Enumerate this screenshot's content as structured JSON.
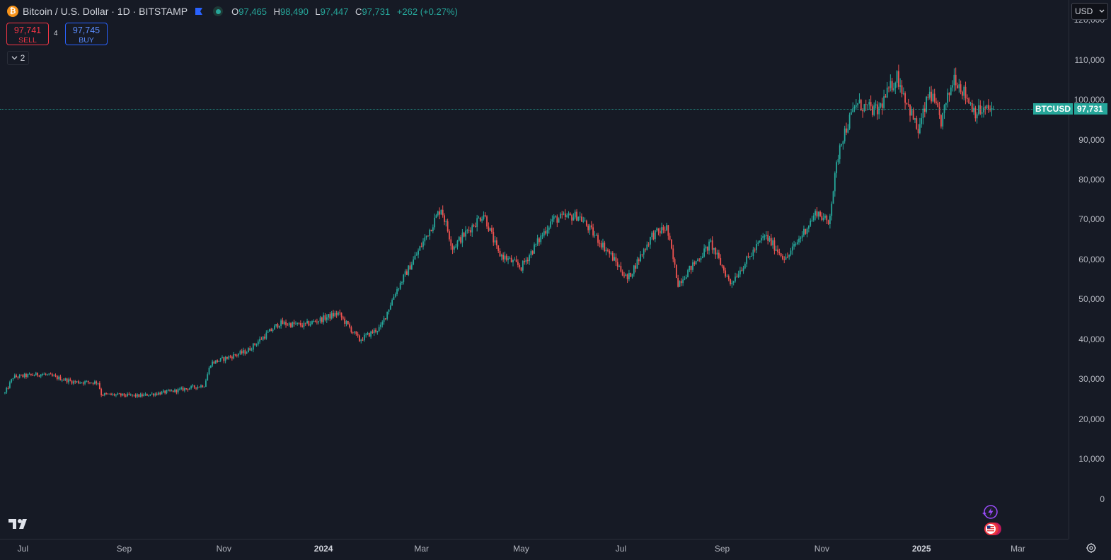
{
  "header": {
    "coin_glyph": "₿",
    "symbol": "Bitcoin / U.S. Dollar · 1D · BITSTAMP",
    "ohlc": {
      "o_label": "O",
      "o": "97,465",
      "h_label": "H",
      "h": "98,490",
      "l_label": "L",
      "l": "97,447",
      "c_label": "C",
      "c": "97,731",
      "change": "+262 (+0.27%)"
    }
  },
  "trade": {
    "sell_price": "97,741",
    "sell_label": "SELL",
    "spread": "4",
    "buy_price": "97,745",
    "buy_label": "BUY"
  },
  "indicators": {
    "count": "2"
  },
  "currency": {
    "value": "USD"
  },
  "last_price": {
    "symbol": "BTCUSD",
    "value": "97,731"
  },
  "colors": {
    "up": "#26a69a",
    "down": "#ef5350",
    "background": "#161a25",
    "grid": "#2a2e39"
  },
  "icons": [
    "bitcoin-icon",
    "flag-icon",
    "status-dot-icon",
    "chevron-down-icon",
    "tradingview-logo",
    "lightning-icon",
    "us-flag-icon",
    "settings-icon"
  ],
  "chart_data": {
    "type": "candlestick",
    "title": "Bitcoin / U.S. Dollar · 1D · BITSTAMP",
    "interval": "1D",
    "y_ticks": [
      "120,000",
      "110,000",
      "100,000",
      "90,000",
      "80,000",
      "70,000",
      "60,000",
      "50,000",
      "40,000",
      "30,000",
      "20,000",
      "10,000",
      "0"
    ],
    "x_ticks": [
      {
        "label": "Jul",
        "date": "2023-07-01",
        "bold": false
      },
      {
        "label": "Sep",
        "date": "2023-09-01",
        "bold": false
      },
      {
        "label": "Nov",
        "date": "2023-11-01",
        "bold": false
      },
      {
        "label": "2024",
        "date": "2024-01-01",
        "bold": true
      },
      {
        "label": "Mar",
        "date": "2024-03-01",
        "bold": false
      },
      {
        "label": "May",
        "date": "2024-05-01",
        "bold": false
      },
      {
        "label": "Jul",
        "date": "2024-07-01",
        "bold": false
      },
      {
        "label": "Sep",
        "date": "2024-09-01",
        "bold": false
      },
      {
        "label": "Nov",
        "date": "2024-11-01",
        "bold": false
      },
      {
        "label": "2025",
        "date": "2025-01-01",
        "bold": true
      },
      {
        "label": "Mar",
        "date": "2025-03-01",
        "bold": false
      }
    ],
    "x_range": [
      "2023-06-17",
      "2025-04-01"
    ],
    "y_range": [
      -10000,
      125000
    ],
    "grid": false,
    "series": [
      {
        "name": "BTCUSD",
        "close_path": [
          [
            "2023-06-20",
            26500
          ],
          [
            "2023-06-25",
            30500
          ],
          [
            "2023-07-13",
            31300
          ],
          [
            "2023-08-01",
            29300
          ],
          [
            "2023-08-16",
            29200
          ],
          [
            "2023-08-18",
            26200
          ],
          [
            "2023-09-10",
            25800
          ],
          [
            "2023-10-01",
            27000
          ],
          [
            "2023-10-20",
            28500
          ],
          [
            "2023-10-24",
            34000
          ],
          [
            "2023-11-15",
            37000
          ],
          [
            "2023-12-05",
            44000
          ],
          [
            "2023-12-20",
            43500
          ],
          [
            "2024-01-10",
            46500
          ],
          [
            "2024-01-23",
            39800
          ],
          [
            "2024-02-05",
            43000
          ],
          [
            "2024-02-14",
            51800
          ],
          [
            "2024-02-28",
            62000
          ],
          [
            "2024-03-13",
            73000
          ],
          [
            "2024-03-20",
            63000
          ],
          [
            "2024-04-08",
            71500
          ],
          [
            "2024-04-17",
            61500
          ],
          [
            "2024-05-01",
            58000
          ],
          [
            "2024-05-20",
            70000
          ],
          [
            "2024-06-05",
            71000
          ],
          [
            "2024-06-25",
            61000
          ],
          [
            "2024-07-05",
            55000
          ],
          [
            "2024-07-20",
            66000
          ],
          [
            "2024-07-29",
            68000
          ],
          [
            "2024-08-05",
            54000
          ],
          [
            "2024-08-25",
            64000
          ],
          [
            "2024-09-06",
            54000
          ],
          [
            "2024-09-27",
            66000
          ],
          [
            "2024-10-10",
            60000
          ],
          [
            "2024-10-29",
            72000
          ],
          [
            "2024-11-05",
            69000
          ],
          [
            "2024-11-12",
            89000
          ],
          [
            "2024-11-22",
            99000
          ],
          [
            "2024-12-05",
            97000
          ],
          [
            "2024-12-17",
            106000
          ],
          [
            "2024-12-30",
            92000
          ],
          [
            "2025-01-06",
            102000
          ],
          [
            "2025-01-13",
            94500
          ],
          [
            "2025-01-21",
            106000
          ],
          [
            "2025-02-03",
            97000
          ],
          [
            "2025-02-14",
            97731
          ]
        ],
        "last": {
          "date": "2025-02-14",
          "open": 97465,
          "high": 98490,
          "low": 97447,
          "close": 97731
        }
      }
    ]
  }
}
